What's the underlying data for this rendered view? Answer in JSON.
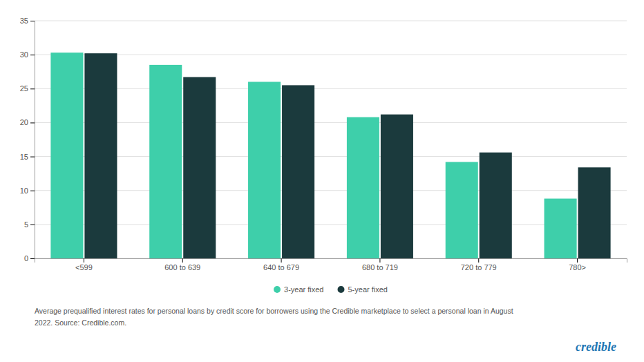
{
  "chart_data": {
    "type": "bar",
    "categories": [
      "<599",
      "600 to 639",
      "640 to 679",
      "680 to 719",
      "720 to 779",
      "780>"
    ],
    "series": [
      {
        "name": "3-year fixed",
        "color": "#3ECFAA",
        "values": [
          30.3,
          28.5,
          26.0,
          20.8,
          14.2,
          8.8
        ]
      },
      {
        "name": "5-year fixed",
        "color": "#1B3A3D",
        "values": [
          30.2,
          26.7,
          25.5,
          21.2,
          15.6,
          13.4
        ]
      }
    ],
    "ylim": [
      0,
      35
    ],
    "yticks": [
      0,
      5,
      10,
      15,
      20,
      25,
      30,
      35
    ],
    "grid": true,
    "legend": "bottom",
    "annotations": [
      "Average prequalified interest rates for personal loans by credit score for borrowers using the Credible marketplace to select a personal loan in August",
      "2022. Source: Credible.com.",
      "credible"
    ]
  }
}
